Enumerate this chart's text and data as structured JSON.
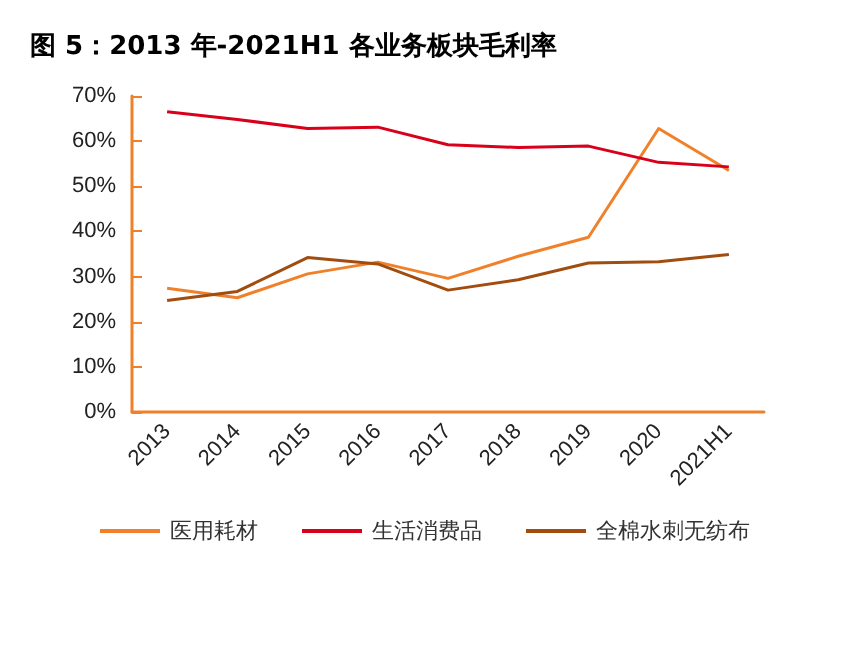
{
  "chart_data": {
    "type": "line",
    "title": "图 5：2013 年-2021H1 各业务板块毛利率",
    "categories": [
      "2013",
      "2014",
      "2015",
      "2016",
      "2017",
      "2018",
      "2019",
      "2020",
      "2021H1"
    ],
    "series": [
      {
        "name": "医用耗材",
        "color": "#f0812a",
        "values": [
          27.4,
          25.3,
          30.6,
          33.2,
          29.6,
          34.5,
          38.7,
          62.8,
          53.5
        ]
      },
      {
        "name": "生活消费品",
        "color": "#d9001b",
        "values": [
          66.5,
          64.8,
          62.8,
          63.1,
          59.2,
          58.6,
          58.9,
          55.3,
          54.3
        ]
      },
      {
        "name": "全棉水刺无纺布",
        "color": "#a24d10",
        "values": [
          24.7,
          26.7,
          34.2,
          32.8,
          27.0,
          29.3,
          33.0,
          33.3,
          34.9
        ]
      }
    ],
    "ylim": [
      0,
      70
    ],
    "yticks": [
      {
        "value": 0,
        "label": "0%"
      },
      {
        "value": 10,
        "label": "10%"
      },
      {
        "value": 20,
        "label": "20%"
      },
      {
        "value": 30,
        "label": "30%"
      },
      {
        "value": 40,
        "label": "40%"
      },
      {
        "value": 50,
        "label": "50%"
      },
      {
        "value": 60,
        "label": "60%"
      },
      {
        "value": 70,
        "label": "70%"
      }
    ],
    "grid": false,
    "legend": "bottom",
    "marker": "none"
  }
}
